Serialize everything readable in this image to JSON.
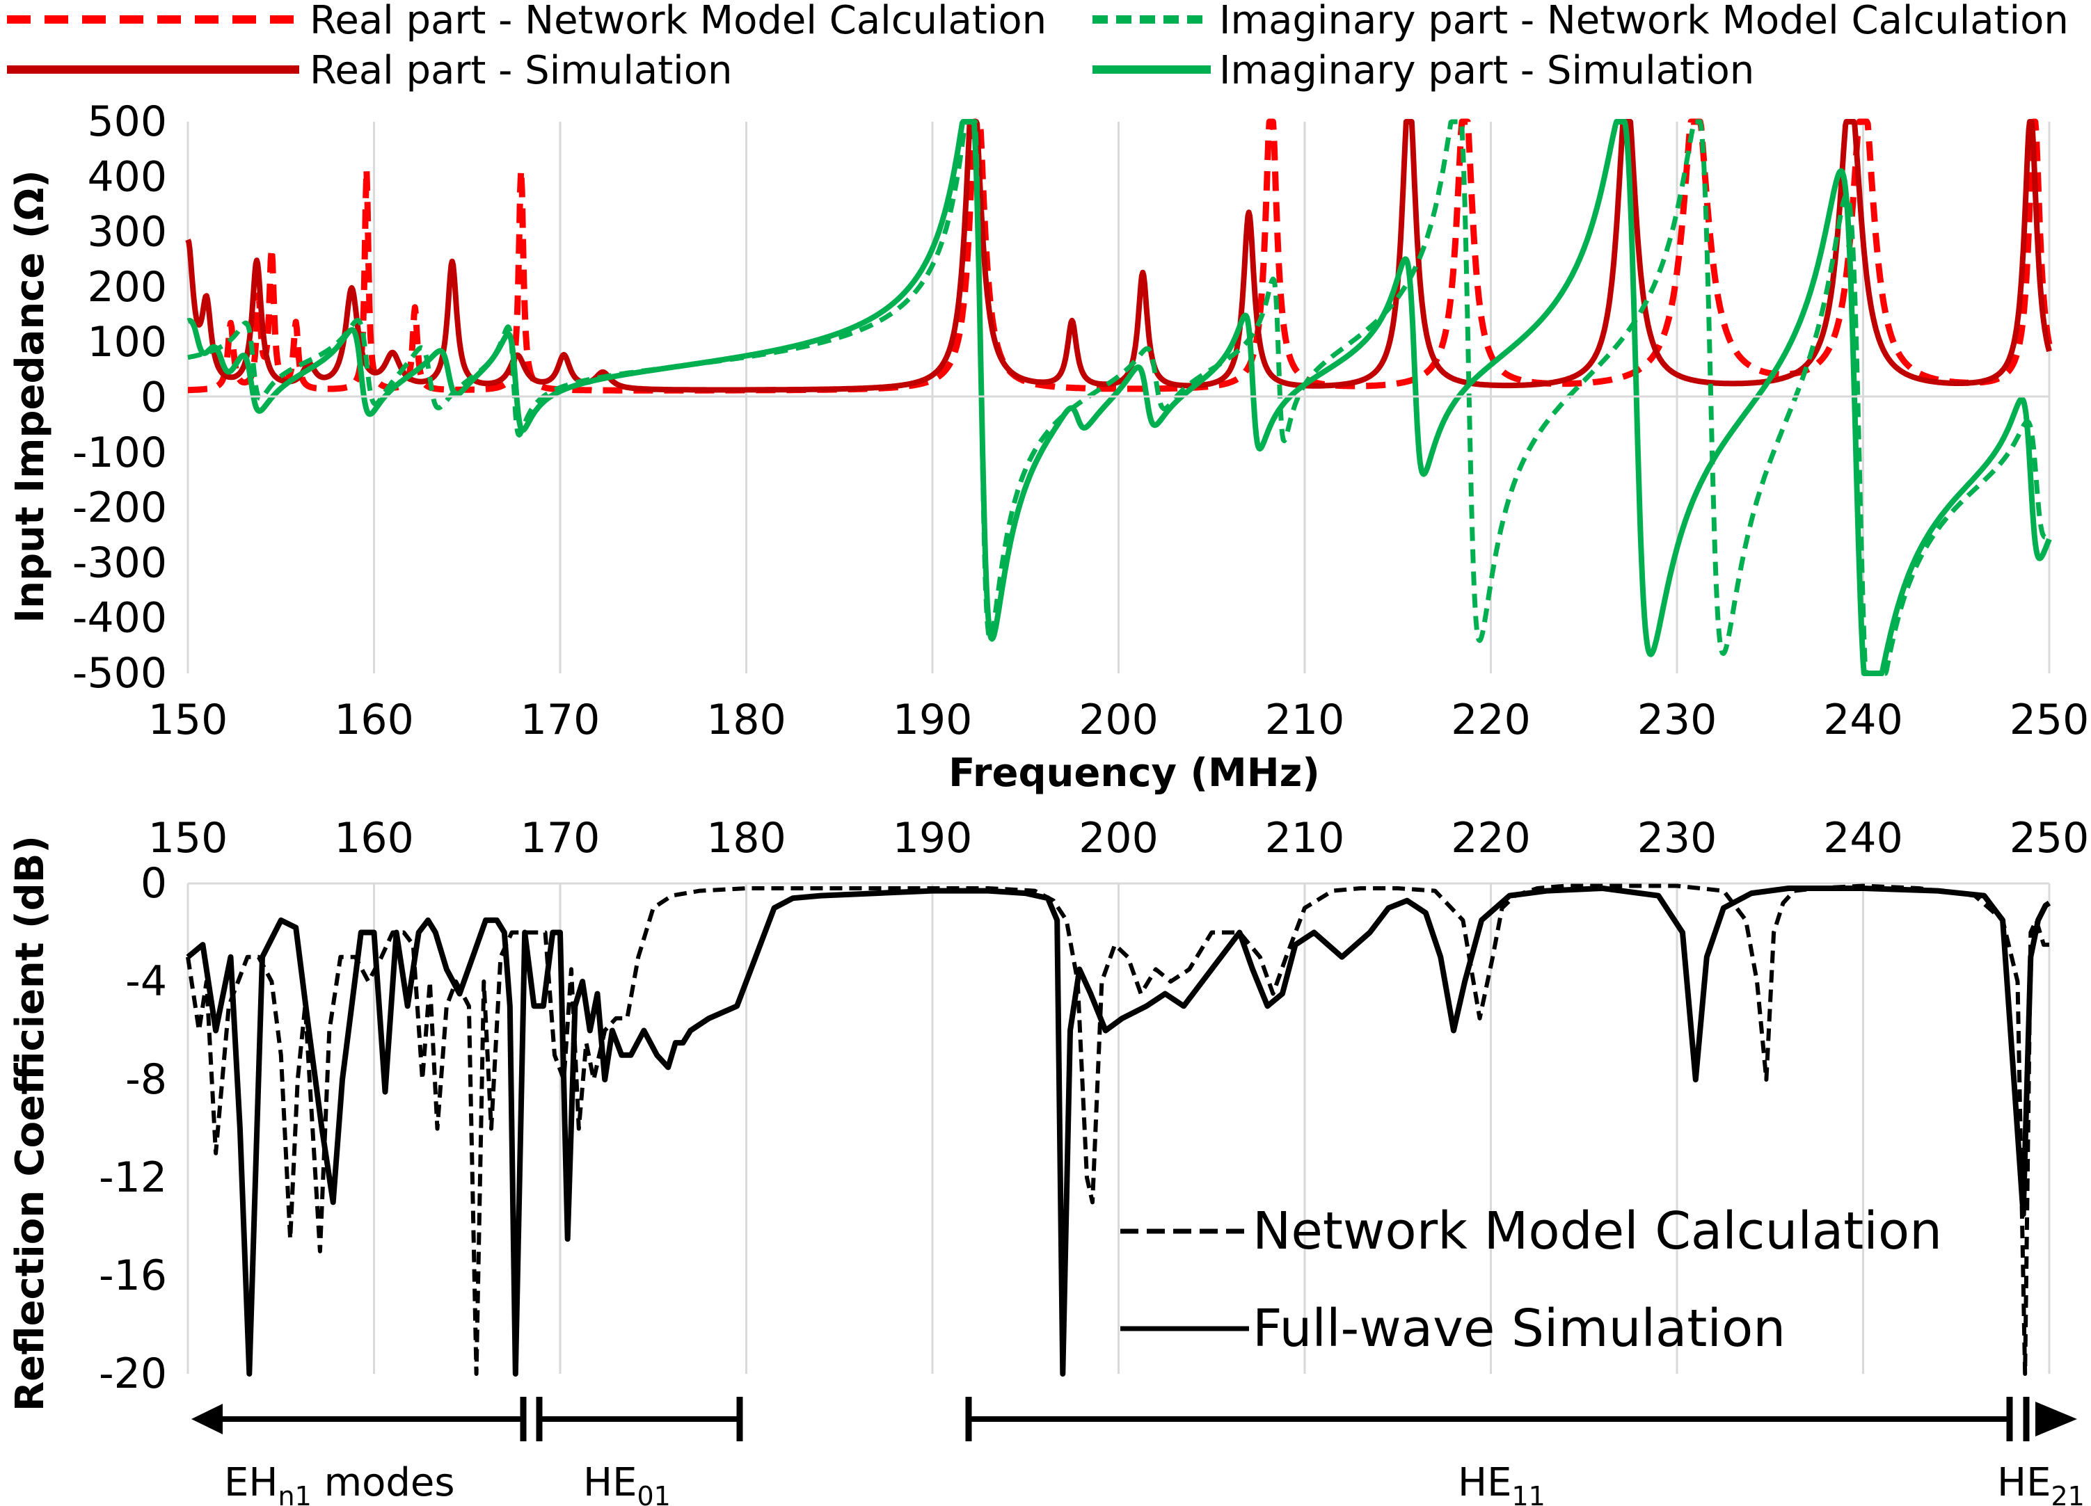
{
  "colors": {
    "real": "#c00000",
    "real_model": "#ff0000",
    "imag": "#00b050",
    "imag_model": "#00b050",
    "network": "#000000",
    "fullwave": "#000000",
    "grid": "#d9d9d9"
  },
  "chart_data": [
    {
      "type": "line",
      "ylabel": "Input Impedance (Ω)",
      "xlabel": "Frequency (MHz)",
      "xlim": [
        150,
        250
      ],
      "ylim": [
        -500,
        500
      ],
      "x_ticks": [
        "150",
        "160",
        "170",
        "180",
        "190",
        "200",
        "210",
        "220",
        "230",
        "240",
        "250"
      ],
      "y_ticks": [
        "500",
        "400",
        "300",
        "200",
        "100",
        "0",
        "-100",
        "-200",
        "-300",
        "-400",
        "-500"
      ],
      "grid": "vertical",
      "legend_position": "top",
      "series": [
        {
          "name": "Real part - Network Model Calculation",
          "style": "dashed",
          "color": "#ff0000",
          "resonances": [
            [
              152.3,
              120,
              0.18
            ],
            [
              153.8,
              160,
              0.14
            ],
            [
              154.5,
              250,
              0.15
            ],
            [
              155.8,
              120,
              0.15
            ],
            [
              159.6,
              400,
              0.12
            ],
            [
              162.2,
              150,
              0.15
            ],
            [
              167.9,
              400,
              0.15
            ],
            [
              192.4,
              560,
              0.45
            ],
            [
              208.2,
              540,
              0.35
            ],
            [
              218.6,
              540,
              0.5
            ],
            [
              231.0,
              540,
              0.8
            ],
            [
              240.0,
              540,
              0.7
            ],
            [
              249.2,
              500,
              0.35
            ]
          ]
        },
        {
          "name": "Real part - Simulation",
          "style": "solid",
          "color": "#c00000",
          "resonances": [
            [
              150.0,
              260,
              0.35
            ],
            [
              151.0,
              140,
              0.3
            ],
            [
              153.7,
              230,
              0.3
            ],
            [
              156.5,
              40,
              0.4
            ],
            [
              158.8,
              180,
              0.4
            ],
            [
              161.0,
              60,
              0.5
            ],
            [
              164.2,
              230,
              0.3
            ],
            [
              167.7,
              60,
              0.5
            ],
            [
              170.2,
              60,
              0.4
            ],
            [
              172.3,
              30,
              0.5
            ],
            [
              192.2,
              560,
              0.5
            ],
            [
              197.5,
              120,
              0.3
            ],
            [
              201.3,
              210,
              0.3
            ],
            [
              207.0,
              320,
              0.35
            ],
            [
              215.6,
              540,
              0.45
            ],
            [
              227.3,
              540,
              0.6
            ],
            [
              239.3,
              540,
              0.7
            ],
            [
              249.0,
              500,
              0.4
            ]
          ]
        },
        {
          "name": "Imaginary part - Network Model Calculation",
          "style": "dashed",
          "color": "#00b050",
          "resonances": [
            [
              153.5,
              140,
              0.4
            ],
            [
              159.6,
              160,
              0.5
            ],
            [
              163.0,
              120,
              0.5
            ],
            [
              167.5,
              200,
              0.3
            ],
            [
              192.6,
              1000,
              0.5
            ],
            [
              202.0,
              120,
              0.5
            ],
            [
              208.6,
              300,
              0.3
            ],
            [
              218.8,
              1000,
              0.6
            ],
            [
              231.8,
              1000,
              0.7
            ],
            [
              239.8,
              1000,
              0.7
            ],
            [
              249.3,
              220,
              0.5
            ]
          ]
        },
        {
          "name": "Imaginary part - Simulation",
          "style": "solid",
          "color": "#00b050",
          "resonances": [
            [
              150.5,
              80,
              0.5
            ],
            [
              151.8,
              80,
              0.6
            ],
            [
              153.4,
              120,
              0.5
            ],
            [
              159.3,
              160,
              0.5
            ],
            [
              164.0,
              90,
              0.5
            ],
            [
              167.6,
              180,
              0.4
            ],
            [
              192.6,
              1000,
              0.6
            ],
            [
              197.8,
              60,
              0.5
            ],
            [
              201.5,
              120,
              0.5
            ],
            [
              207.2,
              250,
              0.4
            ],
            [
              215.9,
              400,
              0.5
            ],
            [
              227.8,
              1000,
              0.8
            ],
            [
              239.6,
              1000,
              0.8
            ],
            [
              249.0,
              300,
              0.5
            ]
          ]
        }
      ]
    },
    {
      "type": "line",
      "ylabel": "Reflection Coefficient (dB)",
      "xlim": [
        150,
        250
      ],
      "ylim": [
        -20,
        0
      ],
      "x_ticks": [
        "150",
        "160",
        "170",
        "180",
        "190",
        "200",
        "210",
        "220",
        "230",
        "240",
        "250"
      ],
      "y_ticks": [
        "0",
        "-4",
        "-8",
        "-12",
        "-16",
        "-20"
      ],
      "grid": "vertical",
      "legend_position": "bottom-right",
      "series": [
        {
          "name": "Network Model Calculation",
          "style": "dashed",
          "color": "#000000",
          "x": [
            150,
            150.6,
            151,
            151.5,
            152.2,
            152.7,
            153.2,
            153.8,
            154.5,
            155.0,
            155.5,
            155.9,
            156.3,
            156.7,
            157.1,
            157.6,
            158.2,
            159.0,
            159.7,
            160.4,
            161.0,
            161.6,
            162.1,
            162.6,
            163.0,
            163.4,
            163.9,
            164.4,
            165.1,
            165.5,
            165.9,
            166.3,
            166.8,
            167.4,
            168.0,
            168.6,
            169.2,
            169.7,
            170.2,
            170.6,
            171.0,
            171.4,
            171.8,
            172.4,
            173.0,
            173.6,
            174.2,
            175.0,
            176.0,
            177.5,
            180,
            185,
            190,
            193,
            195.5,
            196.5,
            197.2,
            197.8,
            198.3,
            198.6,
            199.1,
            199.8,
            200.5,
            201.2,
            202.0,
            202.8,
            203.8,
            205.0,
            206.5,
            207.6,
            208.3,
            209.0,
            210.0,
            211.5,
            213.0,
            215.0,
            217.0,
            218.5,
            219.4,
            220.1,
            220.6,
            221.3,
            222.5,
            224.0,
            227.0,
            230.0,
            232.5,
            233.7,
            234.3,
            234.8,
            235.2,
            235.7,
            236.3,
            237.5,
            240.0,
            243.0,
            246.0,
            247.5,
            248.3,
            248.7,
            249.0,
            249.3,
            249.7,
            250.0
          ],
          "y": [
            -3,
            -6,
            -4,
            -11,
            -5,
            -4,
            -3,
            -3,
            -4,
            -7,
            -14.5,
            -8,
            -5,
            -10,
            -15,
            -6,
            -3,
            -3,
            -4,
            -3,
            -2,
            -2,
            -2.5,
            -8,
            -4,
            -10,
            -5,
            -4,
            -5,
            -20,
            -4,
            -10,
            -3,
            -2,
            -2,
            -2,
            -2,
            -7,
            -8,
            -3.5,
            -10,
            -6.5,
            -8,
            -6,
            -5.5,
            -5.5,
            -3,
            -1,
            -0.5,
            -0.3,
            -0.2,
            -0.2,
            -0.2,
            -0.2,
            -0.3,
            -0.7,
            -1.5,
            -4,
            -12,
            -13,
            -4,
            -2.5,
            -3,
            -4.5,
            -3.5,
            -4,
            -3.5,
            -2,
            -2,
            -3,
            -4.5,
            -3,
            -1,
            -0.3,
            -0.2,
            -0.2,
            -0.3,
            -1.5,
            -5.5,
            -3,
            -1,
            -0.5,
            -0.2,
            -0.1,
            -0.1,
            -0.1,
            -0.3,
            -1.5,
            -4,
            -8,
            -2,
            -0.8,
            -0.3,
            -0.2,
            -0.1,
            -0.2,
            -0.5,
            -1.5,
            -4,
            -20,
            -2,
            -1.5,
            -2.5,
            -2.5
          ]
        },
        {
          "name": "Full-wave Simulation",
          "style": "solid",
          "color": "#000000",
          "x": [
            150,
            150.8,
            151.5,
            152.3,
            152.8,
            153.3,
            154.0,
            155.0,
            155.8,
            156.5,
            157.2,
            157.8,
            158.3,
            158.8,
            159.3,
            160.0,
            160.6,
            161.2,
            161.8,
            162.4,
            162.9,
            163.3,
            163.9,
            164.6,
            165.3,
            166.0,
            166.6,
            167.0,
            167.3,
            167.6,
            168.1,
            168.6,
            169.1,
            169.6,
            170.0,
            170.4,
            170.8,
            171.2,
            171.6,
            172.0,
            172.4,
            172.8,
            173.3,
            173.8,
            174.5,
            175.2,
            175.8,
            176.2,
            176.6,
            177.0,
            178.0,
            179.5,
            180.5,
            181.5,
            182.5,
            184.0,
            187.0,
            190.0,
            193.0,
            195.0,
            196.2,
            196.7,
            197.0,
            197.4,
            197.9,
            198.5,
            199.3,
            200.2,
            201.5,
            202.5,
            203.5,
            204.5,
            205.5,
            206.5,
            207.2,
            208.0,
            208.8,
            209.5,
            210.5,
            212.0,
            213.5,
            214.5,
            215.5,
            216.5,
            217.3,
            218.0,
            218.6,
            219.5,
            221.0,
            223.0,
            226.0,
            229.0,
            230.3,
            231.0,
            231.6,
            232.5,
            234.0,
            236.0,
            240.0,
            244.0,
            246.5,
            247.5,
            248.1,
            248.6,
            249.0,
            249.4,
            249.8,
            250.0
          ],
          "y": [
            -3,
            -2.5,
            -6,
            -3,
            -10,
            -20,
            -3,
            -1.5,
            -1.8,
            -6,
            -10,
            -13,
            -8,
            -5,
            -2,
            -2,
            -8.5,
            -2,
            -5,
            -2,
            -1.5,
            -2,
            -3.5,
            -4.5,
            -3,
            -1.5,
            -1.5,
            -2,
            -5,
            -20,
            -2,
            -5,
            -5,
            -2,
            -2,
            -14.5,
            -5,
            -4,
            -6,
            -4.5,
            -8,
            -6,
            -7,
            -7,
            -6,
            -7,
            -7.5,
            -6.5,
            -6.5,
            -6,
            -5.5,
            -5,
            -3,
            -1,
            -0.6,
            -0.5,
            -0.4,
            -0.3,
            -0.3,
            -0.4,
            -0.6,
            -1.5,
            -20,
            -6,
            -3.5,
            -4.5,
            -6,
            -5.5,
            -5,
            -4.5,
            -5,
            -4,
            -3,
            -2,
            -3.5,
            -5,
            -4.5,
            -2.5,
            -2,
            -3,
            -2,
            -1,
            -0.7,
            -1.2,
            -3,
            -6,
            -4,
            -1.5,
            -0.5,
            -0.3,
            -0.2,
            -0.5,
            -2,
            -8,
            -3,
            -1,
            -0.4,
            -0.2,
            -0.2,
            -0.3,
            -0.5,
            -1.5,
            -8,
            -13.5,
            -3,
            -1.5,
            -0.9,
            -0.8
          ]
        }
      ]
    }
  ],
  "annotations": {
    "modes": [
      {
        "label": "EH",
        "sub": "n1",
        "suffix": " modes"
      },
      {
        "label": "HE",
        "sub": "01",
        "suffix": ""
      },
      {
        "label": "HE",
        "sub": "11",
        "suffix": ""
      },
      {
        "label": "HE",
        "sub": "21",
        "suffix": ""
      }
    ]
  }
}
